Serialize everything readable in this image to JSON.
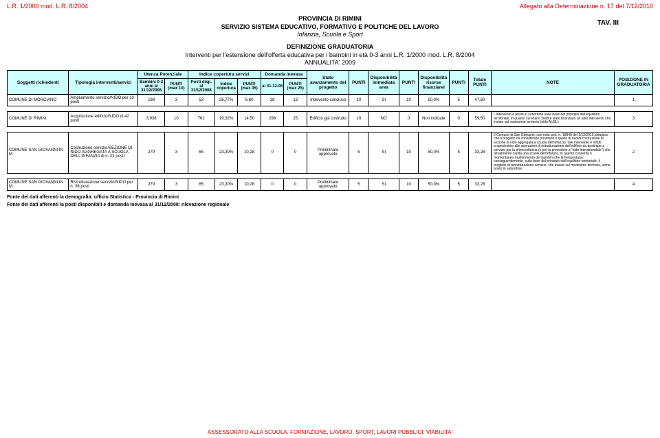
{
  "colors": {
    "accent": "#c00000",
    "header_bg": "#ccffff",
    "border": "#000000",
    "background": "#ffffff"
  },
  "top": {
    "left": "L.R. 1/2000 mod. L.R. 8/2004",
    "right": "Allegato alla Determinazione n. 17 del 7/12/2010"
  },
  "tav": "TAV. III",
  "header": {
    "line1": "PROVINCIA DI RIMINI",
    "line2": "SERVIZIO SISTEMA EDUCATIVO, FORMATIVO E POLITICHE DEL LAVORO",
    "line3": "Infanzia, Scuola e Sport"
  },
  "subheader": {
    "line1": "DEFINIZIONE GRADUATORIA",
    "line2": "Interventi per l'estensione dell'offerta educativa per i bambini in età 0-3 anni L.R. 1/2000 mod. L.R. 8/2004",
    "line3": "ANNUALITA' 2009"
  },
  "table": {
    "group_headers": {
      "utenza": "Utenza Potenziale",
      "indice": "Indice copertura servizi",
      "domanda": "Domanda inevasa"
    },
    "columns": [
      "Soggetti richiedenti",
      "Tipologia interventi/servizi",
      "Bambini 0-2 anni al 31/12/2008",
      "PUNTI (max 10)",
      "Posti disp. al 31/12/2008",
      "Indice copertura",
      "PUNTI (max 35)",
      "al 31.12.08",
      "PUNTI (max 25)",
      "Stato avanzamento del progetto",
      "PUNTI",
      "Disponibilità immediata area",
      "PUNTI",
      "Disponibilità risorse finanziarei",
      "PUNTI",
      "Totale PUNTI",
      "NOTE",
      "POSIZIONE IN GRADUATORIA"
    ],
    "rows": [
      {
        "soggetto": "COMUNE DI MORCIANO",
        "tipologia": "Ampliamento servizio/NIDO per 10 posti",
        "bambini": "198",
        "p10": "3",
        "posti": "53",
        "idx": "26,77%",
        "p35": "6,60",
        "dom": "38",
        "p25": "13",
        "stato": "Intervento concluso",
        "punti1": "10",
        "disp": "SI",
        "punti2": "10",
        "dispf": "50,0%",
        "punti3": "5",
        "tot": "47,60",
        "note": "",
        "pos": "1"
      },
      {
        "soggetto": "COMUNE DI RIMINI",
        "tipologia": "Acquisizione edificio/NIDO di 42 posti",
        "bambini": "3.938",
        "p10": "10",
        "posti": "761",
        "idx": "19,32%",
        "p35": "14,50",
        "dom": "298",
        "p25": "25",
        "stato": "Edificio già costruito",
        "punti1": "10",
        "disp": "NO",
        "punti2": "0",
        "dispf": "Non indicate",
        "punti3": "0",
        "tot": "59,50",
        "note": "L'intervento è posto in subordine sulla base del principio dell'equilibrio territoriale, in quanto sul Piano 2008 è stato finanziato un altro intervento che insiste sul medesimo territorio (nido AUSL)",
        "pos": "3"
      },
      {
        "soggetto": "COMUNE SAN GIOVANNI IN M.",
        "tipologia": "Costruzione servizio/SEZIONE DI NIDO AGGREGATA A SCUOLA DELL'INFANZIA di n. 22 posti",
        "bambini": "279",
        "p10": "3",
        "posti": "65",
        "idx": "23,30%",
        "p35": "10,28",
        "dom": "0",
        "p25": "0",
        "stato": "Preliminare approvato",
        "punti1": "5",
        "disp": "SI",
        "punti2": "10",
        "dispf": "50,0%",
        "punti3": "5",
        "tot": "33,28",
        "note": "Il Comune di San Giovanni, con nota prot. n. 18949 del 1/12/2010,chiarisce che il progetto da considerare prioritario è quello di nuova costruzione di sezione di nido aggregata a scuola dell'infanzia: tale intervento è infatti propedeutico alle operazioni di ristrutturazione dell'edificio da destinare a servizio per la prima infanzia (e per la precisione a \"nido interaziendale\") che attualmente ospita una scuola dell'infanzia, in quanto consente il momentaneo trasferimento dei bambini che la frequentano; conseguentemente, sulla base del principio dell'equilibrio territoriale, il progetto di ristrutturazione servizio, che insiste sul medesimo territorio, viene posto in subordine.",
        "pos": "2"
      },
      {
        "soggetto": "COMUNE SAN GIOVANNI IN M.",
        "tipologia": "Ristrutturazione servizio/NIDO per n. 36 posti",
        "bambini": "279",
        "p10": "3",
        "posti": "65",
        "idx": "23,30%",
        "p35": "10,28",
        "dom": "0",
        "p25": "0",
        "stato": "Preliminare approvato",
        "punti1": "5",
        "disp": "SI",
        "punti2": "10",
        "dispf": "50,0%",
        "punti3": "5",
        "tot": "33,28",
        "note": "",
        "pos": "4"
      }
    ]
  },
  "footer": {
    "note1": "Fonte dei dati afferenti la demografia: ufficio Statistica - Provincia di Rimini",
    "note2": "Fonte dei dati afferenti la posti disponibili e domanda inevasa al 31/12/2008: rilevazione regionale"
  },
  "bottom": "ASSESSORATO ALLA SCUOLA, FORMAZIONE, LAVORO, SPORT, LAVORI PUBBLICI, VIABILITA'"
}
